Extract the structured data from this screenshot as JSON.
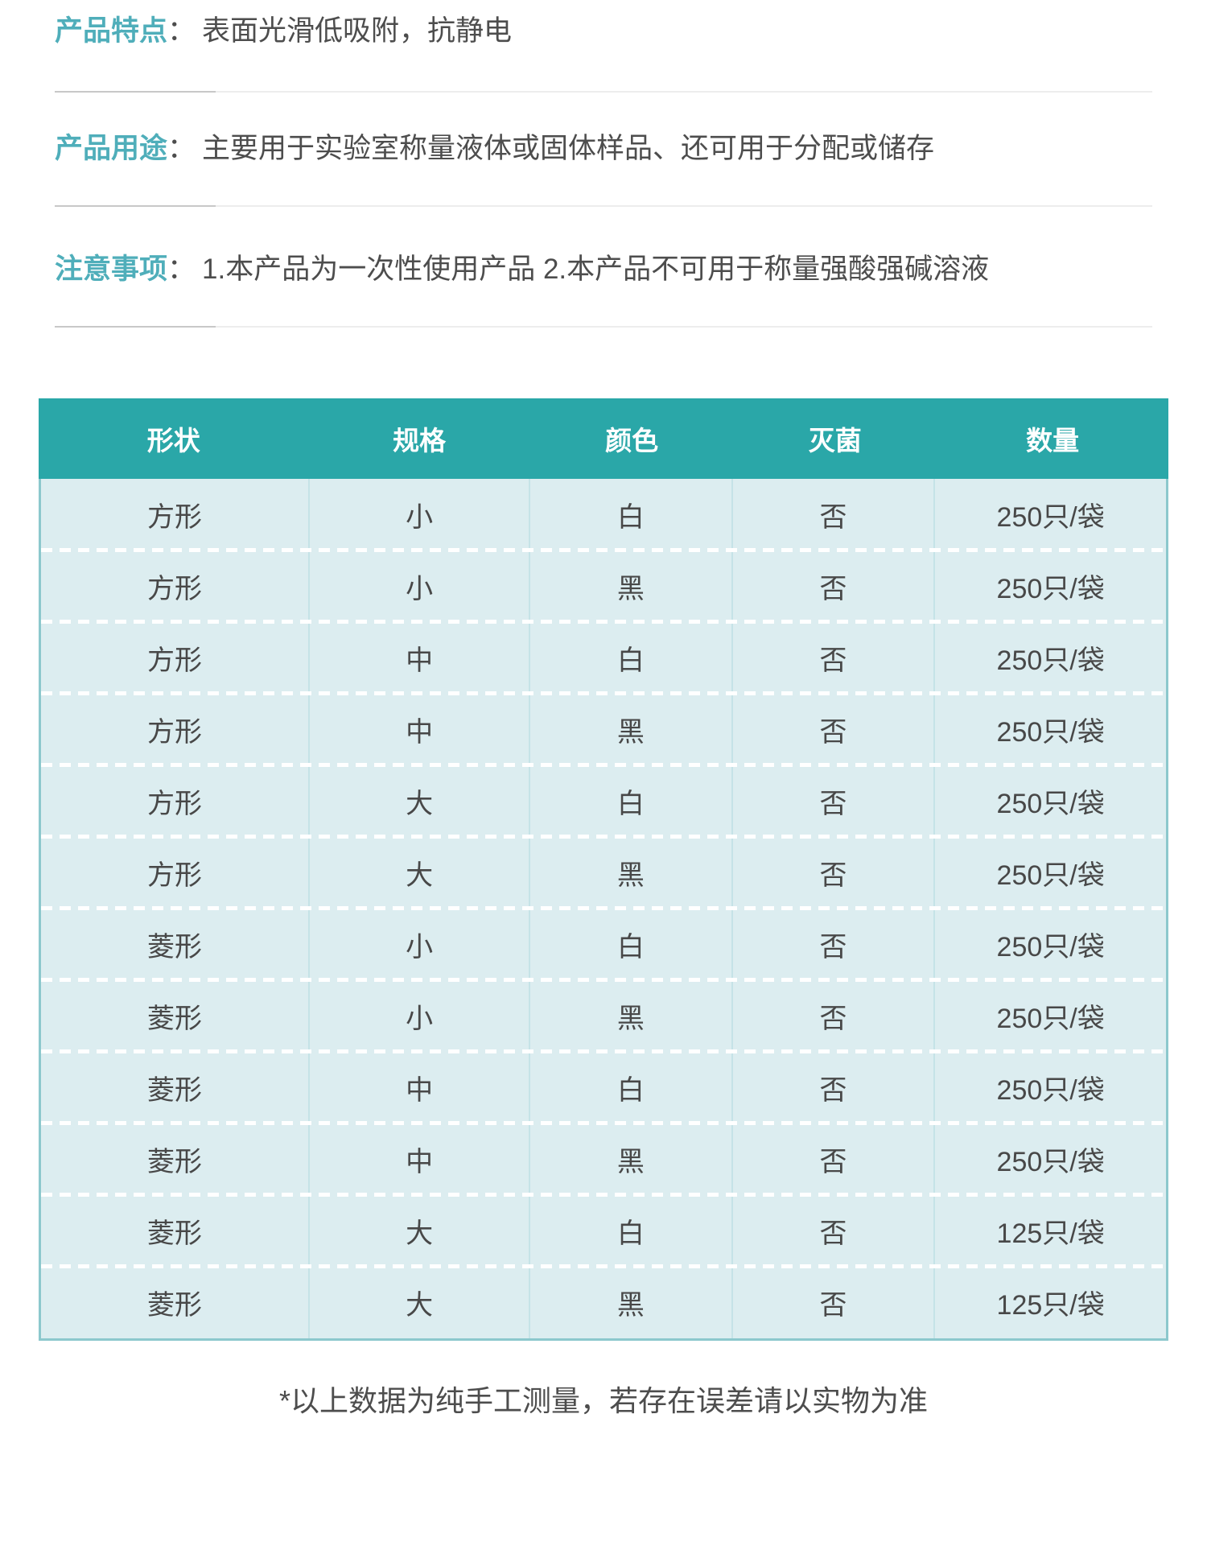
{
  "sections": [
    {
      "label": "产品特点",
      "colon": "：",
      "text": "表面光滑低吸附，抗静电"
    },
    {
      "label": "产品用途",
      "colon": "：",
      "text": "主要用于实验室称量液体或固体样品、还可用于分配或储存"
    },
    {
      "label": "注意事项",
      "colon": "：",
      "text": "1.本产品为一次性使用产品 2.本产品不可用于称量强酸强碱溶液"
    }
  ],
  "table": {
    "columns": [
      "形状",
      "规格",
      "颜色",
      "灭菌",
      "数量"
    ],
    "rows": [
      [
        "方形",
        "小",
        "白",
        "否",
        "250只/袋"
      ],
      [
        "方形",
        "小",
        "黑",
        "否",
        "250只/袋"
      ],
      [
        "方形",
        "中",
        "白",
        "否",
        "250只/袋"
      ],
      [
        "方形",
        "中",
        "黑",
        "否",
        "250只/袋"
      ],
      [
        "方形",
        "大",
        "白",
        "否",
        "250只/袋"
      ],
      [
        "方形",
        "大",
        "黑",
        "否",
        "250只/袋"
      ],
      [
        "菱形",
        "小",
        "白",
        "否",
        "250只/袋"
      ],
      [
        "菱形",
        "小",
        "黑",
        "否",
        "250只/袋"
      ],
      [
        "菱形",
        "中",
        "白",
        "否",
        "250只/袋"
      ],
      [
        "菱形",
        "中",
        "黑",
        "否",
        "250只/袋"
      ],
      [
        "菱形",
        "大",
        "白",
        "否",
        "125只/袋"
      ],
      [
        "菱形",
        "大",
        "黑",
        "否",
        "125只/袋"
      ]
    ]
  },
  "footer": {
    "note": "*以上数据为纯手工测量，若存在误差请以实物为准"
  },
  "colors": {
    "header_teal": "#2AA7A8",
    "label_teal": "#4FAEBA",
    "table_body_bg": "#DCEDF0",
    "grid_line": "#C5E3E7",
    "outer_border": "#8CC8CD",
    "body_text": "#4D4D4D"
  }
}
